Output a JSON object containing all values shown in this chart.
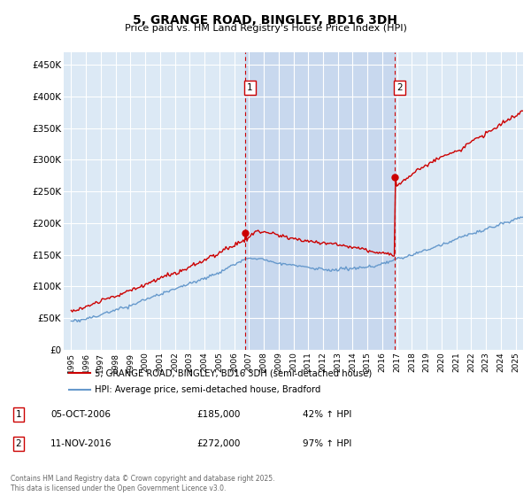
{
  "title": "5, GRANGE ROAD, BINGLEY, BD16 3DH",
  "subtitle": "Price paid vs. HM Land Registry's House Price Index (HPI)",
  "plot_bg_color": "#dce9f5",
  "shade_color": "#c8d8ee",
  "ylabel_ticks": [
    "£0",
    "£50K",
    "£100K",
    "£150K",
    "£200K",
    "£250K",
    "£300K",
    "£350K",
    "£400K",
    "£450K"
  ],
  "ylim": [
    0,
    470000
  ],
  "xlim_start": 1994.5,
  "xlim_end": 2025.5,
  "red_line_color": "#cc0000",
  "blue_line_color": "#6699cc",
  "sale1_x": 2006.76,
  "sale1_y": 185000,
  "sale2_x": 2016.86,
  "sale2_y": 272000,
  "legend_line1": "5, GRANGE ROAD, BINGLEY, BD16 3DH (semi-detached house)",
  "legend_line2": "HPI: Average price, semi-detached house, Bradford",
  "sale1_date": "05-OCT-2006",
  "sale1_price": "£185,000",
  "sale1_hpi": "42% ↑ HPI",
  "sale2_date": "11-NOV-2016",
  "sale2_price": "£272,000",
  "sale2_hpi": "97% ↑ HPI",
  "footer": "Contains HM Land Registry data © Crown copyright and database right 2025.\nThis data is licensed under the Open Government Licence v3.0.",
  "grid_color": "#ffffff",
  "vline_color": "#cc0000"
}
